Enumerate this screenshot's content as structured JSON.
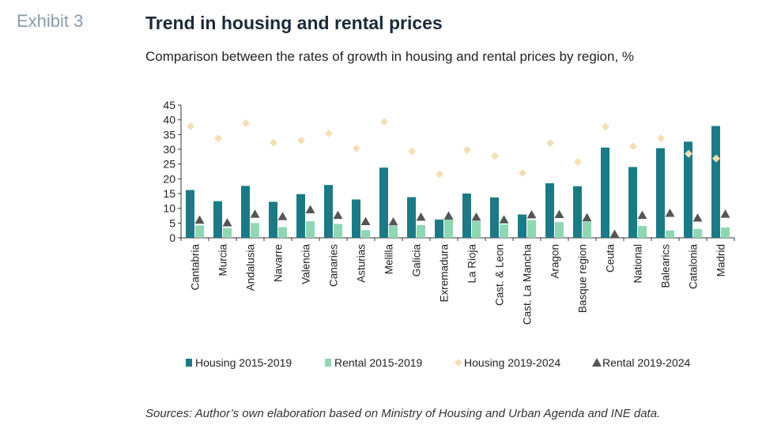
{
  "header": {
    "exhibit": "Exhibit 3",
    "title": "Trend in housing and rental prices",
    "subtitle": "Comparison between the rates of growth in housing and rental prices by region, %"
  },
  "footer": {
    "source": "Sources: Author’s own elaboration based on Ministry of Housing and Urban Agenda and INE data."
  },
  "colors": {
    "housing_15_19": "#1c7a86",
    "rental_15_19": "#8fd6b3",
    "housing_19_24": "#f3dfb4",
    "rental_19_24": "#555555"
  },
  "chart_data": {
    "type": "bar",
    "title": "",
    "xlabel": "",
    "ylabel": "",
    "ylim": [
      0,
      45
    ],
    "yticks": [
      0,
      5,
      10,
      15,
      20,
      25,
      30,
      35,
      40,
      45
    ],
    "legend_position": "bottom",
    "categories": [
      "Cantabria",
      "Murcia",
      "Andalusia",
      "Navarre",
      "Valencia",
      "Canaries",
      "Asturias",
      "Melilla",
      "Galicia",
      "Exremadura",
      "La Rioja",
      "Cast. & Leon",
      "Cast. La Mancha",
      "Aragon",
      "Basque region",
      "Ceuta",
      "National",
      "Balearics",
      "Catalonia",
      "Madrid"
    ],
    "series": [
      {
        "name": "Housing 2015-2019",
        "kind": "bar",
        "values": [
          16.2,
          12.4,
          17.6,
          12.2,
          14.8,
          17.9,
          13.0,
          23.8,
          13.8,
          6.2,
          15.0,
          13.7,
          7.9,
          18.5,
          17.5,
          30.6,
          24.0,
          30.4,
          32.6,
          37.9
        ]
      },
      {
        "name": "Rental 2015-2019",
        "kind": "bar",
        "values": [
          4.2,
          3.3,
          5.0,
          3.6,
          5.6,
          4.7,
          2.6,
          4.0,
          4.3,
          6.3,
          5.6,
          4.5,
          6.0,
          5.3,
          5.5,
          0.2,
          4.0,
          2.5,
          3.0,
          3.5
        ]
      },
      {
        "name": "Housing 2019-2024",
        "kind": "diamond",
        "values": [
          37.8,
          33.7,
          38.8,
          32.3,
          33.0,
          35.4,
          30.3,
          39.3,
          29.3,
          21.6,
          29.8,
          27.7,
          22.0,
          32.1,
          25.7,
          37.7,
          31.0,
          33.7,
          28.5,
          26.9
        ]
      },
      {
        "name": "Rental 2019-2024",
        "kind": "triangle",
        "values": [
          6.0,
          5.1,
          8.0,
          7.2,
          9.5,
          7.6,
          5.5,
          5.4,
          7.0,
          7.4,
          7.0,
          6.1,
          7.8,
          7.9,
          6.8,
          1.2,
          7.6,
          8.3,
          6.7,
          8.0
        ]
      }
    ]
  }
}
